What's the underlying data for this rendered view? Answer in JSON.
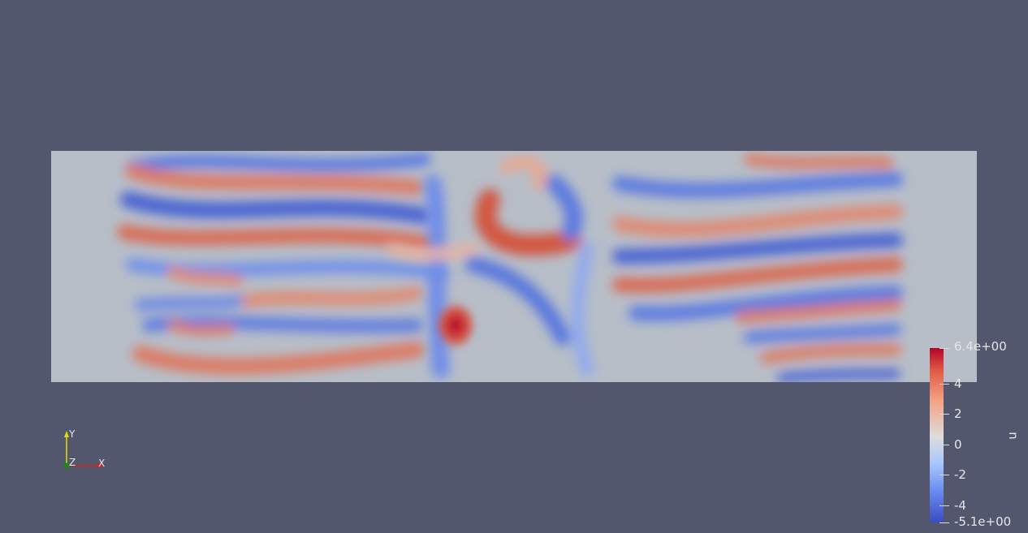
{
  "colorbar": {
    "title": "n",
    "max_label": "6.4e+00",
    "min_label": "-5.1e+00",
    "ticks": [
      "4",
      "2",
      "0",
      "-2",
      "-4"
    ],
    "range": [
      -5.1,
      6.4
    ],
    "colormap": "cool-to-warm",
    "colors": {
      "high": "#b40426",
      "mid": "#dcdddd",
      "low": "#3b4cc0"
    }
  },
  "orientation_axes": {
    "x_label": "X",
    "y_label": "Y",
    "z_label": "Z"
  },
  "colors": {
    "background": "#52576e",
    "field_base": "#b7bec8"
  }
}
